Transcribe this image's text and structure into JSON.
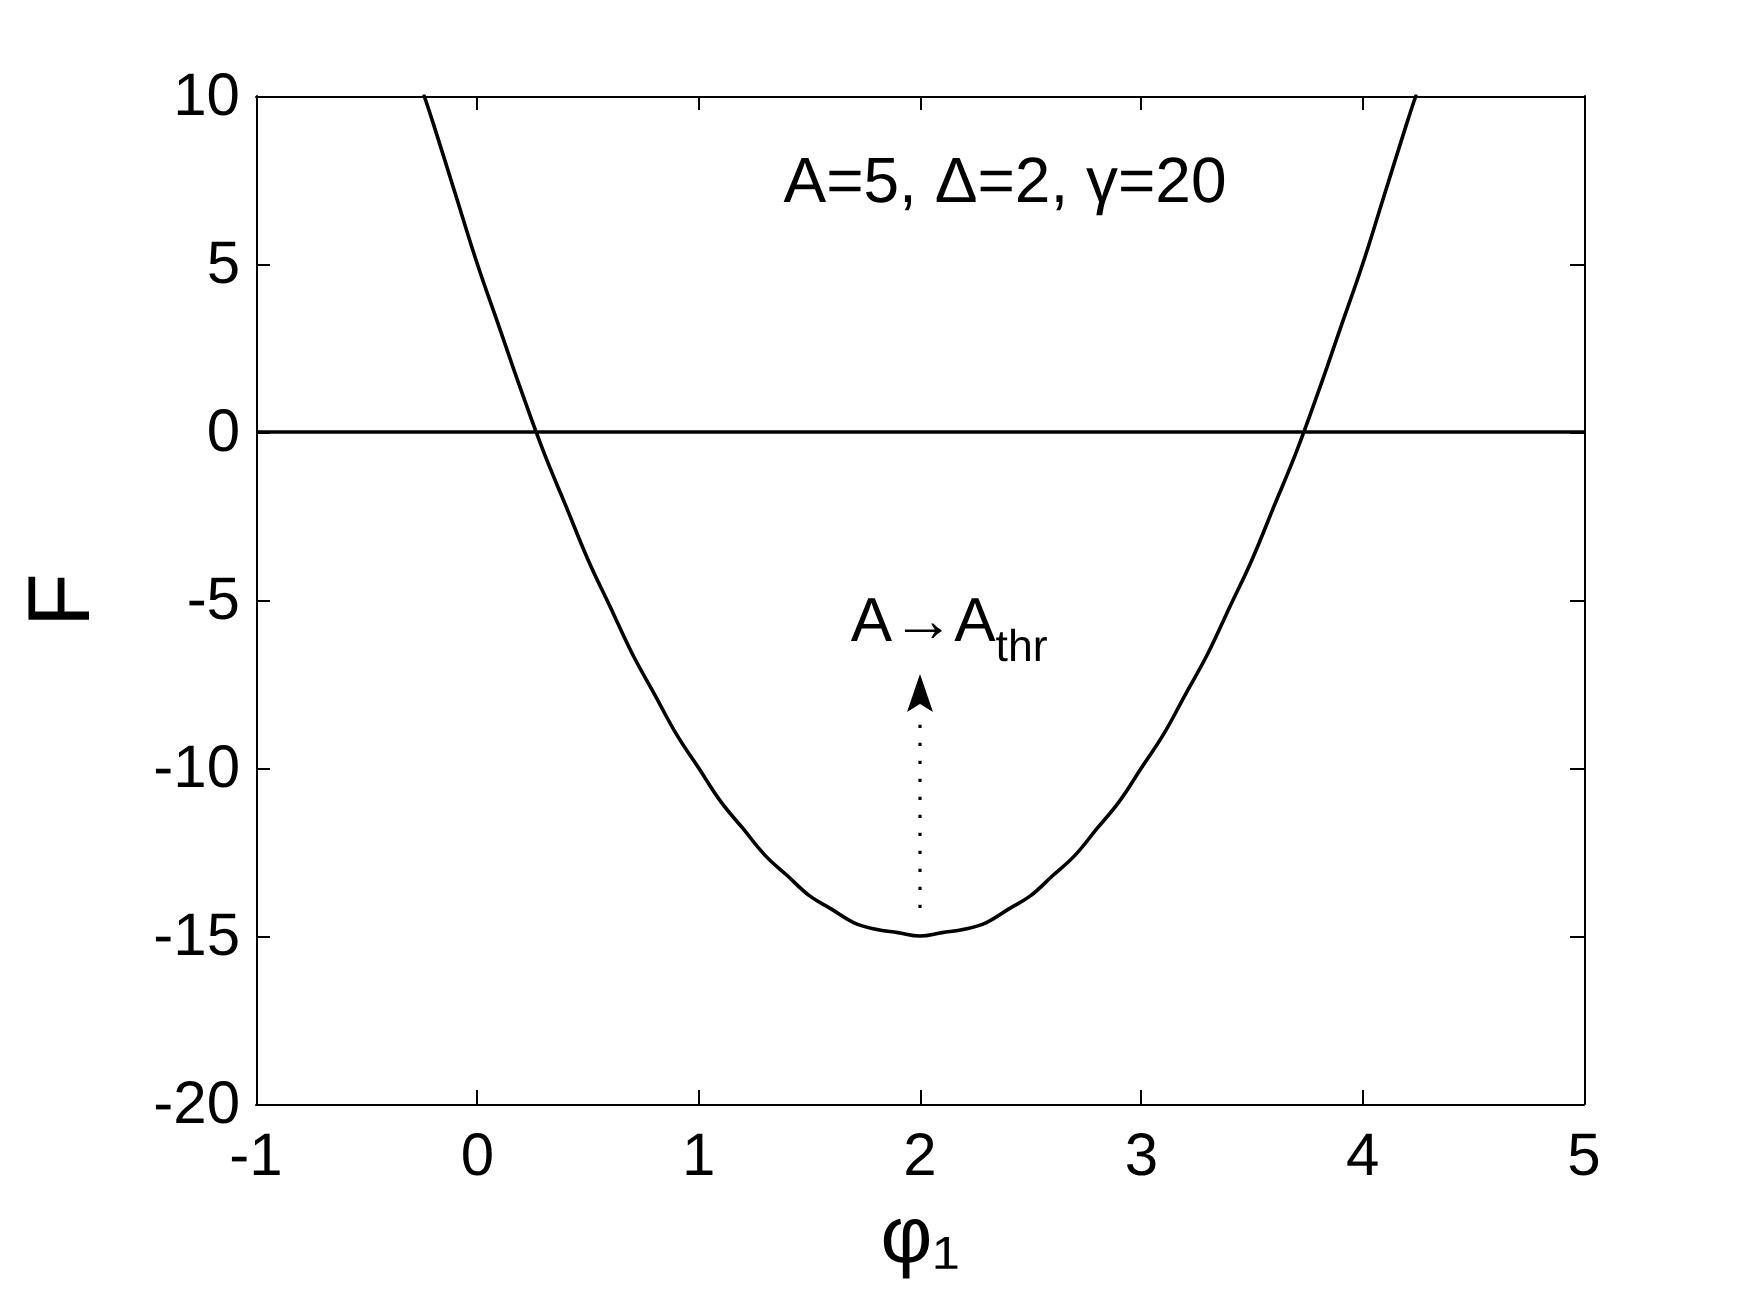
{
  "chart_data": {
    "type": "line",
    "xlabel": "φ₁",
    "ylabel": "F",
    "annotations": [
      "A=5, Δ=2, γ=20",
      "A→A$_{thr}$"
    ],
    "x": [
      -0.24,
      -0.2,
      -0.1,
      0,
      0.1,
      0.2,
      0.3,
      0.4,
      0.5,
      0.6,
      0.7,
      0.8,
      0.9,
      1,
      1.1,
      1.2,
      1.3,
      1.4,
      1.5,
      1.6,
      1.7,
      1.8,
      1.9,
      2,
      2.1,
      2.2,
      2.3,
      2.4,
      2.5,
      2.6,
      2.7,
      2.8,
      2.9,
      3,
      3.1,
      3.2,
      3.3,
      3.4,
      3.5,
      3.6,
      3.7,
      3.8,
      3.9,
      4,
      4.1,
      4.2,
      4.24
    ],
    "series": [
      {
        "color": "#000000",
        "values": [
          10,
          9.2,
          7.1,
          5,
          3.1,
          1.2,
          -0.6,
          -2.2,
          -3.8,
          -5.2,
          -6.6,
          -7.8,
          -9,
          -10,
          -11,
          -11.8,
          -12.6,
          -13.2,
          -13.8,
          -14.2,
          -14.6,
          -14.8,
          -14.9,
          -15,
          -14.9,
          -14.8,
          -14.6,
          -14.2,
          -13.8,
          -13.2,
          -12.6,
          -11.8,
          -11,
          -10,
          -9,
          -7.8,
          -6.6,
          -5.2,
          -3.8,
          -2.2,
          -0.6,
          1.2,
          3.1,
          5,
          7.1,
          9.2,
          10
        ]
      }
    ],
    "xlim": [
      -1,
      5
    ],
    "xticks": [
      -1,
      0,
      1,
      2,
      3,
      4,
      5
    ],
    "ylim": [
      -20,
      10
    ],
    "yticks": [
      -20,
      -15,
      -10,
      -5,
      0,
      5,
      10
    ],
    "ref_lines": [
      {
        "axis": "y",
        "value": 0,
        "color": "#000000"
      }
    ],
    "grid": false,
    "marker": "none",
    "line_style": "solid"
  }
}
